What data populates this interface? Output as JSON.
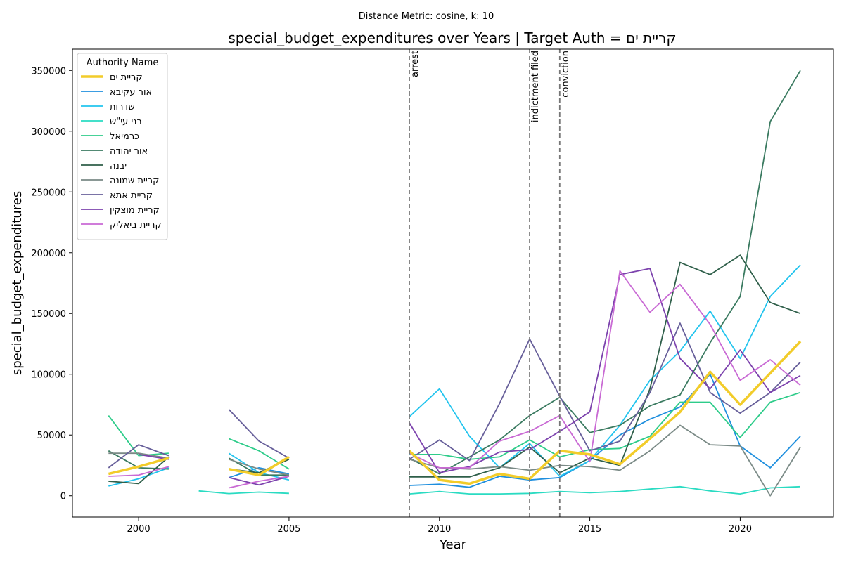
{
  "chart_data": {
    "type": "line",
    "suptitle": "Distance Metric: cosine, k: 10",
    "title": "special_budget_expenditures over Years | Target Auth = קריית ים",
    "xlabel": "Year",
    "ylabel": "special_budget_expenditures",
    "xlim": [
      1997.8,
      2023.1
    ],
    "ylim": [
      -17500,
      367500
    ],
    "xticks": [
      2000,
      2005,
      2010,
      2015,
      2020
    ],
    "yticks": [
      0,
      50000,
      100000,
      150000,
      200000,
      250000,
      300000,
      350000
    ],
    "grid": false,
    "legend": {
      "title": "Authority Name",
      "placement": "upper-left"
    },
    "vlines": [
      {
        "x": 2009,
        "label": "arrest"
      },
      {
        "x": 2013,
        "label": "indictment filed"
      },
      {
        "x": 2014,
        "label": "conviction"
      }
    ],
    "x": [
      1999,
      2000,
      2001,
      2002,
      2003,
      2004,
      2005,
      2006,
      2007,
      2008,
      2009,
      2010,
      2011,
      2012,
      2013,
      2014,
      2015,
      2016,
      2017,
      2018,
      2019,
      2020,
      2021,
      2022
    ],
    "series": [
      {
        "name": "קריית ים",
        "color": "#f2cc2a",
        "width": 3.5,
        "values": [
          18000,
          24000,
          31000,
          null,
          22000,
          17000,
          32000,
          null,
          null,
          null,
          37000,
          13000,
          10000,
          18000,
          14000,
          37000,
          34000,
          26000,
          47000,
          69000,
          102000,
          75000,
          101000,
          127000
        ]
      },
      {
        "name": "אור עקיבא",
        "color": "#1f8fde",
        "width": 1.8,
        "values": [
          null,
          null,
          null,
          null,
          15000,
          23000,
          18000,
          null,
          null,
          null,
          8500,
          9500,
          7000,
          16000,
          13000,
          15000,
          29000,
          50000,
          63000,
          73000,
          100000,
          41000,
          23000,
          49000
        ]
      },
      {
        "name": "שדרות",
        "color": "#22c4ee",
        "width": 1.8,
        "values": [
          8000,
          14000,
          23000,
          null,
          35000,
          19000,
          13000,
          null,
          null,
          null,
          65000,
          88000,
          49000,
          23000,
          43000,
          16000,
          29000,
          58000,
          95000,
          119000,
          152000,
          113000,
          164000,
          190000
        ]
      },
      {
        "name": "בני עי\"ש",
        "color": "#2adbc2",
        "width": 1.8,
        "values": [
          null,
          null,
          null,
          4000,
          1800,
          3000,
          2000,
          null,
          null,
          null,
          1500,
          3500,
          1500,
          1500,
          2000,
          3500,
          2500,
          3500,
          5500,
          7500,
          4000,
          1500,
          6500,
          7500
        ]
      },
      {
        "name": "כרמיאל",
        "color": "#2ecc8a",
        "width": 1.8,
        "values": [
          66000,
          33000,
          35000,
          null,
          47000,
          37000,
          22000,
          null,
          null,
          null,
          34000,
          34000,
          30000,
          32000,
          46000,
          32000,
          38000,
          39000,
          49000,
          77000,
          77000,
          48000,
          77000,
          85000
        ]
      },
      {
        "name": "אור יהודה",
        "color": "#3a7a60",
        "width": 1.8,
        "values": [
          37000,
          23000,
          22000,
          null,
          31000,
          17000,
          17000,
          null,
          null,
          null,
          31000,
          18000,
          32000,
          46000,
          66000,
          81000,
          52000,
          58000,
          74000,
          83000,
          126000,
          164000,
          308000,
          350000
        ]
      },
      {
        "name": "יבנה",
        "color": "#2f5f4a",
        "width": 1.8,
        "values": [
          12000,
          10000,
          32000,
          null,
          22000,
          19000,
          30000,
          null,
          null,
          null,
          15500,
          15500,
          15500,
          23000,
          40000,
          19000,
          31000,
          25000,
          88000,
          192000,
          182000,
          198000,
          159000,
          150000
        ]
      },
      {
        "name": "קריית שמונה",
        "color": "#7a8a86",
        "width": 1.8,
        "values": [
          35000,
          35000,
          31000,
          null,
          30000,
          22000,
          17000,
          null,
          null,
          null,
          30000,
          23000,
          22000,
          24000,
          21000,
          25000,
          24000,
          21000,
          37000,
          58000,
          42000,
          41000,
          0,
          40000
        ]
      },
      {
        "name": "קריית אתא",
        "color": "#675f9a",
        "width": 1.8,
        "values": [
          23000,
          42000,
          33000,
          null,
          71000,
          45000,
          31000,
          null,
          null,
          null,
          30000,
          46000,
          29000,
          76000,
          129000,
          82000,
          37000,
          45000,
          85000,
          142000,
          85000,
          68000,
          85000,
          110000
        ]
      },
      {
        "name": "קריית מוצקין",
        "color": "#7c42ad",
        "width": 1.8,
        "values": [
          null,
          34000,
          30000,
          null,
          15000,
          9000,
          16000,
          null,
          null,
          null,
          60000,
          19000,
          24000,
          36000,
          38000,
          53000,
          69000,
          182000,
          187000,
          113000,
          88000,
          120000,
          85000,
          99000
        ]
      },
      {
        "name": "קריית ביאליק",
        "color": "#c96ad4",
        "width": 1.8,
        "values": [
          16000,
          17000,
          24000,
          null,
          6500,
          12000,
          16000,
          null,
          null,
          null,
          35000,
          23000,
          23000,
          45000,
          53000,
          66000,
          28000,
          185000,
          151000,
          174000,
          141000,
          95000,
          112000,
          91000
        ]
      }
    ]
  }
}
